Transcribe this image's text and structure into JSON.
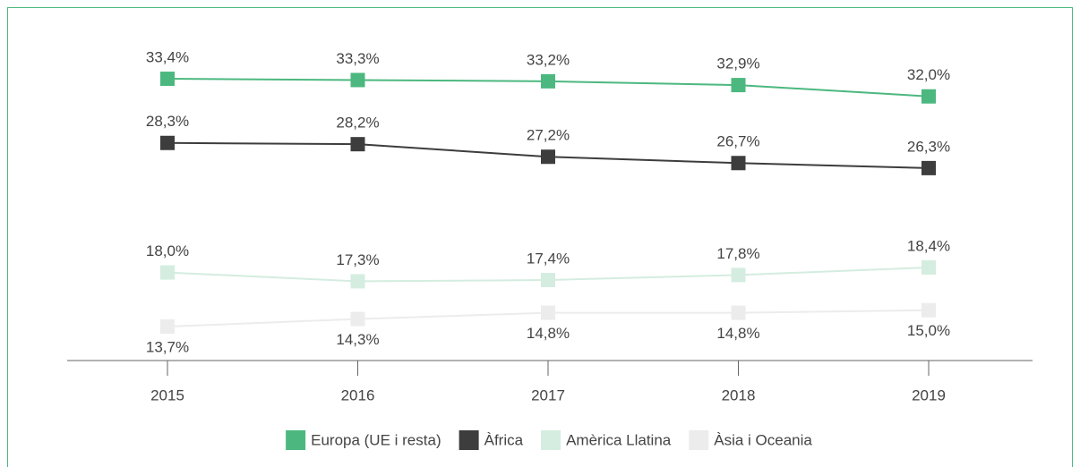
{
  "chart_data": {
    "type": "line",
    "categories": [
      "2015",
      "2016",
      "2017",
      "2018",
      "2019"
    ],
    "series": [
      {
        "name": "Europa (UE i resta)",
        "color": "#4cb87f",
        "values": [
          33.4,
          33.3,
          33.2,
          32.9,
          32.0
        ],
        "value_labels": [
          "33,4%",
          "33,3%",
          "33,2%",
          "32,9%",
          "32,0%"
        ]
      },
      {
        "name": "Àfrica",
        "color": "#3d3d3d",
        "values": [
          28.3,
          28.2,
          27.2,
          26.7,
          26.3
        ],
        "value_labels": [
          "28,3%",
          "28,2%",
          "27,2%",
          "26,7%",
          "26,3%"
        ]
      },
      {
        "name": "Amèrica Llatina",
        "color": "#d4ede0",
        "values": [
          18.0,
          17.3,
          17.4,
          17.8,
          18.4
        ],
        "value_labels": [
          "18,0%",
          "17,3%",
          "17,4%",
          "17,8%",
          "18,4%"
        ]
      },
      {
        "name": "Àsia i Oceania",
        "color": "#ececec",
        "values": [
          13.7,
          14.3,
          14.8,
          14.8,
          15.0
        ],
        "value_labels": [
          "13,7%",
          "14,3%",
          "14,8%",
          "14,8%",
          "15,0%"
        ]
      }
    ],
    "ylim": [
      11,
      36
    ],
    "grid": false,
    "legend": "bottom"
  }
}
